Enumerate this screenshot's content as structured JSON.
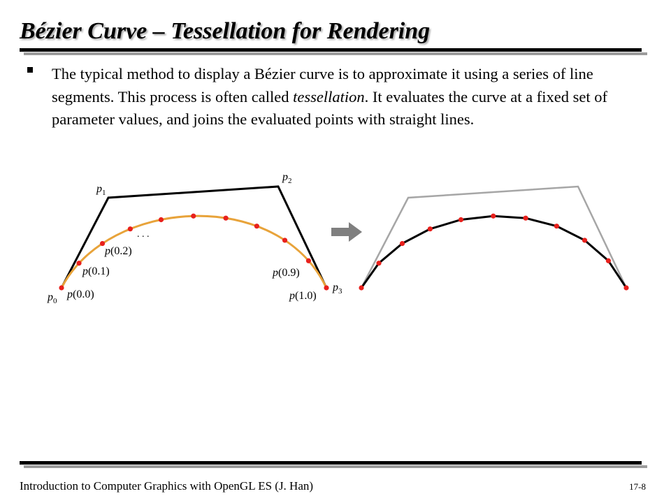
{
  "slide": {
    "title": "Bézier Curve – Tessellation for Rendering",
    "bullet": {
      "lead": "The typical method to display a Bézier curve is to approximate it using a series of line segments. This process is often called ",
      "emphasis": "tessellation",
      "tail": ". It evaluates the curve at a fixed set of parameter values, and joins the evaluated points with straight lines."
    }
  },
  "diagram": {
    "control_point_labels": {
      "p0": {
        "base": "p",
        "sub": "0"
      },
      "p1": {
        "base": "p",
        "sub": "1"
      },
      "p2": {
        "base": "p",
        "sub": "2"
      },
      "p3": {
        "base": "p",
        "sub": "3"
      }
    },
    "param_labels": {
      "t00": {
        "fn": "p",
        "arg": "(0.0)"
      },
      "t01": {
        "fn": "p",
        "arg": "(0.1)"
      },
      "t02": {
        "fn": "p",
        "arg": "(0.2)"
      },
      "t09": {
        "fn": "p",
        "arg": "(0.9)"
      },
      "t10": {
        "fn": "p",
        "arg": "(1.0)"
      }
    },
    "ellipsis": ". . .",
    "colors": {
      "control_polygon": "#000000",
      "control_polygon_faded": "#a6a6a6",
      "curve": "#e8a33a",
      "sample_point": "#e8201c",
      "segments": "#000000",
      "arrow": "#7f7f7f"
    }
  },
  "footer": {
    "text": "Introduction to Computer Graphics with OpenGL ES (J. Han)",
    "page": "17-8"
  }
}
